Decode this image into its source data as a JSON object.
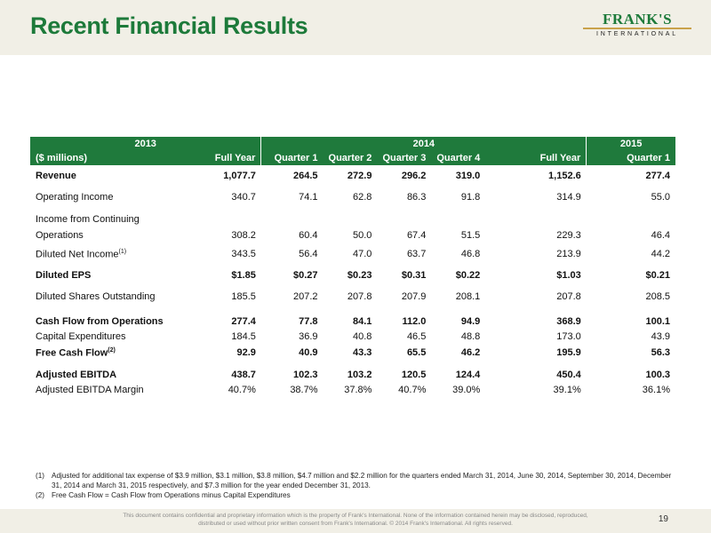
{
  "title": "Recent Financial Results",
  "logo": {
    "brand": "FRANK'S",
    "sub": "INTERNATIONAL"
  },
  "colors": {
    "brand_green": "#1f7a3c",
    "header_bg": "#f1efe6",
    "accent_gold": "#c9a24a"
  },
  "table": {
    "year_headers": [
      "2013",
      "2014",
      "2015"
    ],
    "unit_label": "($ millions)",
    "column_headers": [
      "Full Year",
      "Quarter 1",
      "Quarter 2",
      "Quarter 3",
      "Quarter 4",
      "Full Year",
      "Quarter 1"
    ],
    "rows": [
      {
        "label": "Revenue",
        "values": [
          "1,077.7",
          "264.5",
          "272.9",
          "296.2",
          "319.0",
          "1,152.6",
          "277.4"
        ]
      },
      {
        "label": "Operating Income",
        "values": [
          "340.7",
          "74.1",
          "62.8",
          "86.3",
          "91.8",
          "314.9",
          "55.0"
        ]
      },
      {
        "label": "Income from Continuing",
        "label2": "Operations",
        "values": [
          "308.2",
          "60.4",
          "50.0",
          "67.4",
          "51.5",
          "229.3",
          "46.4"
        ]
      },
      {
        "label": "Diluted Net Income",
        "sup": "(1)",
        "values": [
          "343.5",
          "56.4",
          "47.0",
          "63.7",
          "46.8",
          "213.9",
          "44.2"
        ]
      },
      {
        "label": "Diluted EPS",
        "values": [
          "$1.85",
          "$0.27",
          "$0.23",
          "$0.31",
          "$0.22",
          "$1.03",
          "$0.21"
        ]
      },
      {
        "label": "Diluted Shares Outstanding",
        "values": [
          "185.5",
          "207.2",
          "207.8",
          "207.9",
          "208.1",
          "207.8",
          "208.5"
        ]
      },
      {
        "label": "Cash Flow from Operations",
        "values": [
          "277.4",
          "77.8",
          "84.1",
          "112.0",
          "94.9",
          "368.9",
          "100.1"
        ]
      },
      {
        "label": "Capital Expenditures",
        "values": [
          "184.5",
          "36.9",
          "40.8",
          "46.5",
          "48.8",
          "173.0",
          "43.9"
        ]
      },
      {
        "label": "Free Cash Flow",
        "sup": "(2)",
        "values": [
          "92.9",
          "40.9",
          "43.3",
          "65.5",
          "46.2",
          "195.9",
          "56.3"
        ]
      },
      {
        "label": "Adjusted EBITDA",
        "values": [
          "438.7",
          "102.3",
          "103.2",
          "120.5",
          "124.4",
          "450.4",
          "100.3"
        ]
      },
      {
        "label": "Adjusted EBITDA Margin",
        "values": [
          "40.7%",
          "38.7%",
          "37.8%",
          "40.7%",
          "39.0%",
          "39.1%",
          "36.1%"
        ]
      }
    ]
  },
  "notes": [
    {
      "num": "(1)",
      "text": "Adjusted for additional tax expense of $3.9 million, $3.1 million, $3.8 million, $4.7 million and $2.2 million for the quarters ended March 31, 2014, June 30, 2014, September 30, 2014, December 31, 2014 and March 31, 2015 respectively, and $7.3 million for the year ended December 31, 2013."
    },
    {
      "num": "(2)",
      "text": "Free Cash Flow = Cash Flow from Operations minus Capital Expenditures"
    }
  ],
  "footer": {
    "disclaimer": "This document contains confidential and proprietary information which is the property of Frank's International. None of the information contained herein may be disclosed, reproduced, distributed or used without prior written consent from Frank's International. © 2014 Frank's International. All rights reserved.",
    "page_number": "19"
  }
}
